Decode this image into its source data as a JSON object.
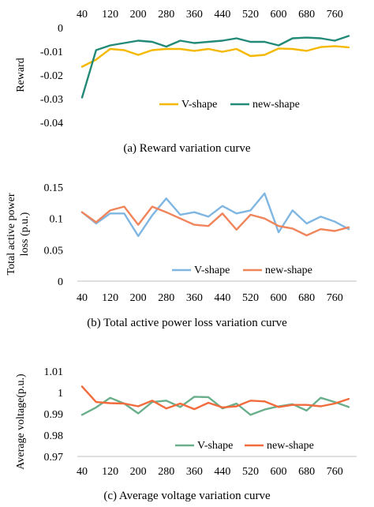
{
  "chart_data": [
    {
      "type": "line",
      "caption": "(a) Reward variation curve",
      "xlabel": "",
      "ylabel": "Reward",
      "x": [
        40,
        80,
        120,
        160,
        200,
        240,
        280,
        320,
        360,
        400,
        440,
        480,
        520,
        560,
        600,
        640,
        680,
        720,
        760,
        800
      ],
      "xticks": [
        40,
        120,
        200,
        280,
        360,
        440,
        520,
        600,
        680,
        760
      ],
      "xticks_position": "top",
      "ylim": [
        -0.04,
        0
      ],
      "yticks": [
        -0.04,
        -0.03,
        -0.02,
        -0.01,
        0
      ],
      "ytick_labels": [
        "-0.04",
        "-0.03",
        "-0.02",
        "-0.01",
        "0"
      ],
      "grid": false,
      "legend_position": "bottom-center",
      "series": [
        {
          "name": "V-shape",
          "color": "#f5b800",
          "values": [
            -0.0165,
            -0.0135,
            -0.009,
            -0.0095,
            -0.0115,
            -0.0095,
            -0.009,
            -0.009,
            -0.0098,
            -0.009,
            -0.0102,
            -0.009,
            -0.012,
            -0.0115,
            -0.0088,
            -0.009,
            -0.0098,
            -0.0082,
            -0.0078,
            -0.0083
          ]
        },
        {
          "name": "new-shape",
          "color": "#238a78",
          "values": [
            -0.0295,
            -0.0095,
            -0.0075,
            -0.0065,
            -0.0055,
            -0.006,
            -0.008,
            -0.0055,
            -0.0065,
            -0.006,
            -0.0055,
            -0.0045,
            -0.006,
            -0.006,
            -0.0075,
            -0.0045,
            -0.0042,
            -0.0045,
            -0.0055,
            -0.0035
          ]
        }
      ]
    },
    {
      "type": "line",
      "caption": "(b) Total active power loss variation curve",
      "xlabel": "",
      "ylabel_lines": [
        "Total active power",
        "loss (p.u.)"
      ],
      "x": [
        40,
        80,
        120,
        160,
        200,
        240,
        280,
        320,
        360,
        400,
        440,
        480,
        520,
        560,
        600,
        640,
        680,
        720,
        760,
        800
      ],
      "xticks": [
        40,
        120,
        200,
        280,
        360,
        440,
        520,
        600,
        680,
        760
      ],
      "xticks_position": "bottom",
      "ylim": [
        0,
        0.15
      ],
      "yticks": [
        0,
        0.05,
        0.1,
        0.15
      ],
      "ytick_labels": [
        "0",
        "0.05",
        "0.1",
        "0.15"
      ],
      "grid": false,
      "legend_position": "bottom-center",
      "series": [
        {
          "name": "V-shape",
          "color": "#7fb6e2",
          "values": [
            0.11,
            0.092,
            0.108,
            0.108,
            0.072,
            0.105,
            0.132,
            0.106,
            0.11,
            0.103,
            0.12,
            0.108,
            0.113,
            0.14,
            0.078,
            0.113,
            0.092,
            0.103,
            0.095,
            0.083
          ]
        },
        {
          "name": "new-shape",
          "color": "#f0845a",
          "values": [
            0.11,
            0.094,
            0.113,
            0.119,
            0.09,
            0.119,
            0.11,
            0.1,
            0.09,
            0.088,
            0.108,
            0.082,
            0.106,
            0.1,
            0.088,
            0.084,
            0.073,
            0.083,
            0.08,
            0.086
          ]
        }
      ]
    },
    {
      "type": "line",
      "caption": "(c) Average voltage variation curve",
      "xlabel": "",
      "ylabel": "Average voltage(p.u.)",
      "x": [
        40,
        80,
        120,
        160,
        200,
        240,
        280,
        320,
        360,
        400,
        440,
        480,
        520,
        560,
        600,
        640,
        680,
        720,
        760,
        800
      ],
      "xticks": [
        40,
        120,
        200,
        280,
        360,
        440,
        520,
        600,
        680,
        760
      ],
      "xticks_position": "bottom",
      "ylim": [
        0.97,
        1.01
      ],
      "yticks": [
        0.97,
        0.98,
        0.99,
        1.0,
        1.01
      ],
      "ytick_labels": [
        "0.97",
        "0.98",
        "0.99",
        "1",
        "1.01"
      ],
      "grid": false,
      "legend_position": "bottom-center",
      "series": [
        {
          "name": "V-shape",
          "color": "#6aaf8b",
          "values": [
            0.9895,
            0.993,
            0.9975,
            0.9948,
            0.9902,
            0.9955,
            0.9962,
            0.9932,
            0.998,
            0.9978,
            0.9925,
            0.9948,
            0.9895,
            0.992,
            0.9935,
            0.9945,
            0.9915,
            0.9975,
            0.9955,
            0.9932
          ]
        },
        {
          "name": "new-shape",
          "color": "#f26b3c",
          "values": [
            1.0028,
            0.9955,
            0.995,
            0.9948,
            0.9935,
            0.9962,
            0.9925,
            0.9948,
            0.9922,
            0.9952,
            0.993,
            0.9935,
            0.9962,
            0.9958,
            0.9932,
            0.9942,
            0.9942,
            0.9935,
            0.9948,
            0.997
          ]
        }
      ]
    }
  ]
}
